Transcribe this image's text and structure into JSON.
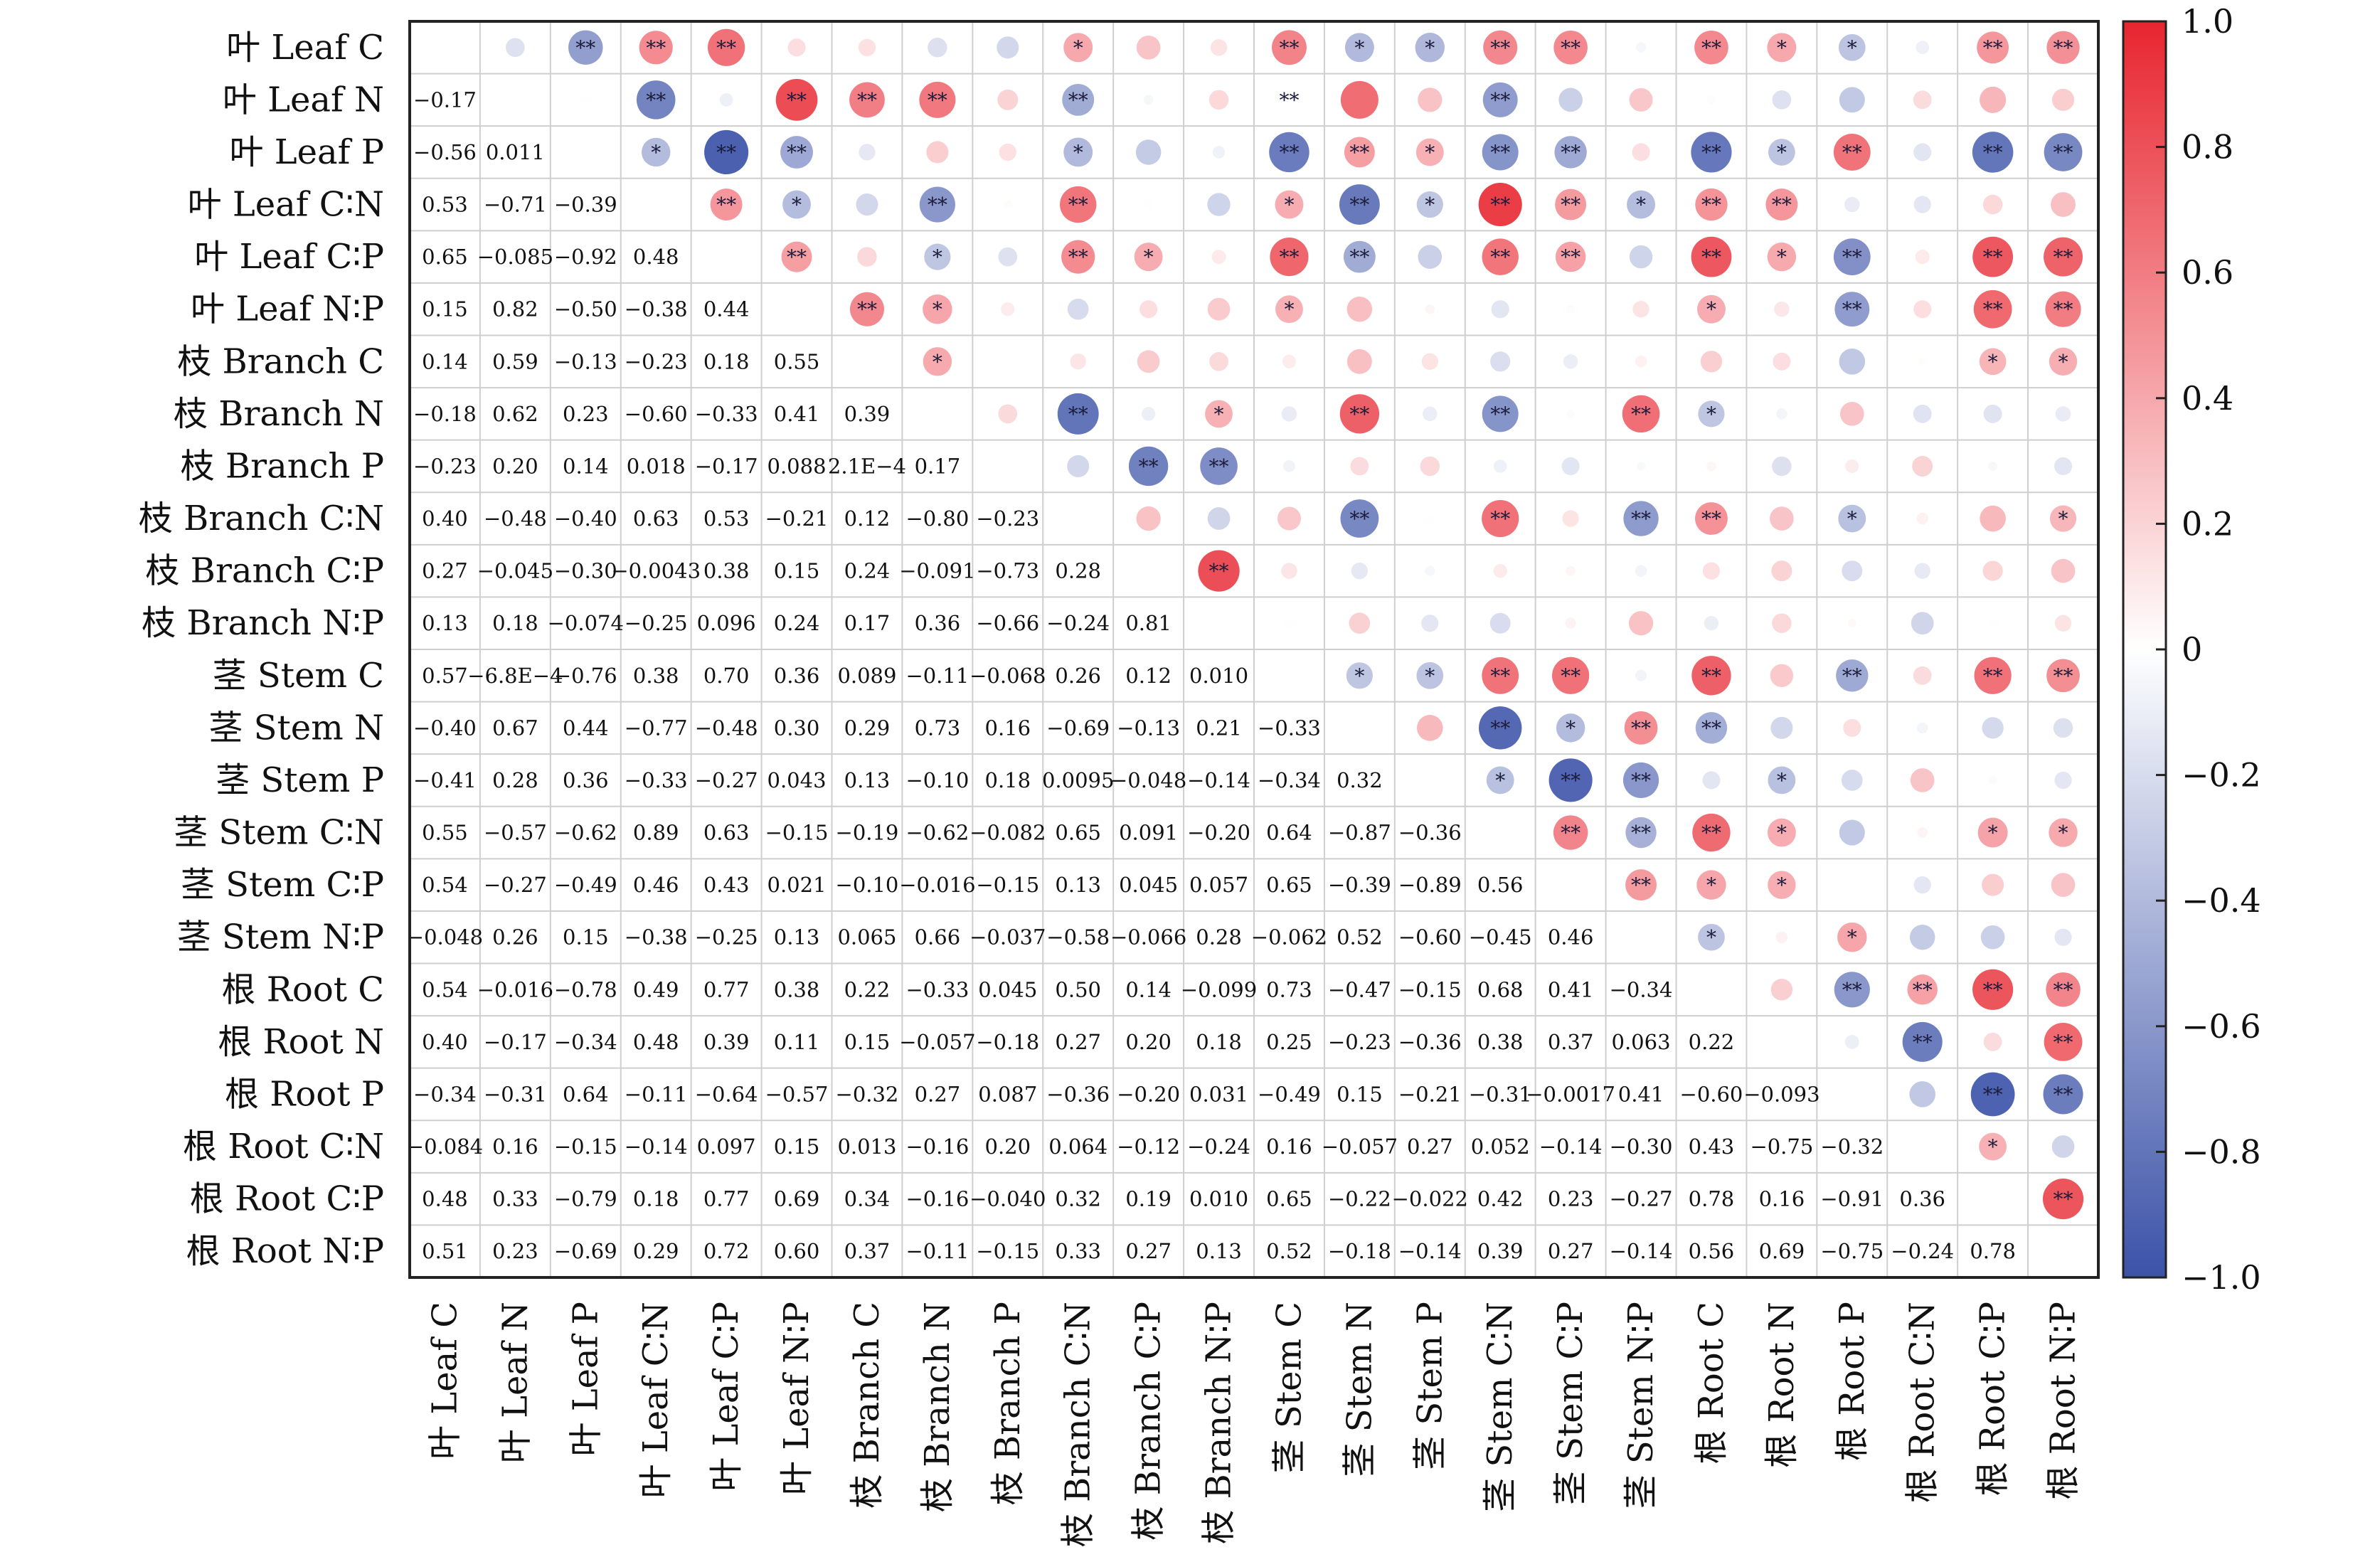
{
  "chart_data": {
    "type": "heatmap",
    "title": "",
    "labels": [
      "叶 Leaf C",
      "叶 Leaf N",
      "叶 Leaf P",
      "叶 Leaf C∶N",
      "叶 Leaf C∶P",
      "叶 Leaf N∶P",
      "枝 Branch C",
      "枝 Branch N",
      "枝 Branch P",
      "枝 Branch C∶N",
      "枝 Branch C∶P",
      "枝 Branch N∶P",
      "茎 Stem C",
      "茎 Stem N",
      "茎 Stem P",
      "茎 Stem C∶N",
      "茎 Stem C∶P",
      "茎 Stem N∶P",
      "根 Root C",
      "根 Root N",
      "根 Root P",
      "根 Root C∶N",
      "根 Root C∶P",
      "根 Root N∶P"
    ],
    "lower_labels": [
      [],
      [
        "−0.17"
      ],
      [
        "−0.56",
        "0.011"
      ],
      [
        "0.53",
        "−0.71",
        "−0.39"
      ],
      [
        "0.65",
        "−0.085",
        "−0.92",
        "0.48"
      ],
      [
        "0.15",
        "0.82",
        "−0.50",
        "−0.38",
        "0.44"
      ],
      [
        "0.14",
        "0.59",
        "−0.13",
        "−0.23",
        "0.18",
        "0.55"
      ],
      [
        "−0.18",
        "0.62",
        "0.23",
        "−0.60",
        "−0.33",
        "0.41",
        "0.39"
      ],
      [
        "−0.23",
        "0.20",
        "0.14",
        "0.018",
        "−0.17",
        "0.088",
        "2.1E−4",
        "0.17"
      ],
      [
        "0.40",
        "−0.48",
        "−0.40",
        "0.63",
        "0.53",
        "−0.21",
        "0.12",
        "−0.80",
        "−0.23"
      ],
      [
        "0.27",
        "−0.045",
        "−0.30",
        "−0.0043",
        "0.38",
        "0.15",
        "0.24",
        "−0.091",
        "−0.73",
        "0.28"
      ],
      [
        "0.13",
        "0.18",
        "−0.074",
        "−0.25",
        "0.096",
        "0.24",
        "0.17",
        "0.36",
        "−0.66",
        "−0.24",
        "0.81"
      ],
      [
        "0.57",
        "−6.8E−4",
        "−0.76",
        "0.38",
        "0.70",
        "0.36",
        "0.089",
        "−0.11",
        "−0.068",
        "0.26",
        "0.12",
        "0.010"
      ],
      [
        "−0.40",
        "0.67",
        "0.44",
        "−0.77",
        "−0.48",
        "0.30",
        "0.29",
        "0.73",
        "0.16",
        "−0.69",
        "−0.13",
        "0.21",
        "−0.33"
      ],
      [
        "−0.41",
        "0.28",
        "0.36",
        "−0.33",
        "−0.27",
        "0.043",
        "0.13",
        "−0.10",
        "0.18",
        "0.0095",
        "−0.048",
        "−0.14",
        "−0.34",
        "0.32"
      ],
      [
        "0.55",
        "−0.57",
        "−0.62",
        "0.89",
        "0.63",
        "−0.15",
        "−0.19",
        "−0.62",
        "−0.082",
        "0.65",
        "0.091",
        "−0.20",
        "0.64",
        "−0.87",
        "−0.36"
      ],
      [
        "0.54",
        "−0.27",
        "−0.49",
        "0.46",
        "0.43",
        "0.021",
        "−0.10",
        "−0.016",
        "−0.15",
        "0.13",
        "0.045",
        "0.057",
        "0.65",
        "−0.39",
        "−0.89",
        "0.56"
      ],
      [
        "−0.048",
        "0.26",
        "0.15",
        "−0.38",
        "−0.25",
        "0.13",
        "0.065",
        "0.66",
        "−0.037",
        "−0.58",
        "−0.066",
        "0.28",
        "−0.062",
        "0.52",
        "−0.60",
        "−0.45",
        "0.46"
      ],
      [
        "0.54",
        "−0.016",
        "−0.78",
        "0.49",
        "0.77",
        "0.38",
        "0.22",
        "−0.33",
        "0.045",
        "0.50",
        "0.14",
        "−0.099",
        "0.73",
        "−0.47",
        "−0.15",
        "0.68",
        "0.41",
        "−0.34"
      ],
      [
        "0.40",
        "−0.17",
        "−0.34",
        "0.48",
        "0.39",
        "0.11",
        "0.15",
        "−0.057",
        "−0.18",
        "0.27",
        "0.20",
        "0.18",
        "0.25",
        "−0.23",
        "−0.36",
        "0.38",
        "0.37",
        "0.063",
        "0.22"
      ],
      [
        "−0.34",
        "−0.31",
        "0.64",
        "−0.11",
        "−0.64",
        "−0.57",
        "−0.32",
        "0.27",
        "0.087",
        "−0.36",
        "−0.20",
        "0.031",
        "−0.49",
        "0.15",
        "−0.21",
        "−0.31",
        "−0.0017",
        "0.41",
        "−0.60",
        "−0.093"
      ],
      [
        "−0.084",
        "0.16",
        "−0.15",
        "−0.14",
        "0.097",
        "0.15",
        "0.013",
        "−0.16",
        "0.20",
        "0.064",
        "−0.12",
        "−0.24",
        "0.16",
        "−0.057",
        "0.27",
        "0.052",
        "−0.14",
        "−0.30",
        "0.43",
        "−0.75",
        "−0.32"
      ],
      [
        "0.48",
        "0.33",
        "−0.79",
        "0.18",
        "0.77",
        "0.69",
        "0.34",
        "−0.16",
        "−0.040",
        "0.32",
        "0.19",
        "0.010",
        "0.65",
        "−0.22",
        "−0.022",
        "0.42",
        "0.23",
        "−0.27",
        "0.78",
        "0.16",
        "−0.91",
        "0.36"
      ],
      [
        "0.51",
        "0.23",
        "−0.69",
        "0.29",
        "0.72",
        "0.60",
        "0.37",
        "−0.11",
        "−0.15",
        "0.33",
        "0.27",
        "0.13",
        "0.52",
        "−0.18",
        "−0.14",
        "0.39",
        "0.27",
        "−0.14",
        "0.56",
        "0.69",
        "−0.75",
        "−0.24",
        "0.78"
      ]
    ],
    "upper_marks": [
      [
        "",
        "",
        "**",
        "**",
        "**",
        "",
        "",
        "",
        "",
        "*",
        "",
        "",
        "**",
        "*",
        "*",
        "**",
        "**",
        "",
        "**",
        "*",
        "*",
        "",
        "**",
        "**"
      ],
      [
        "",
        "",
        "",
        "**",
        "",
        "**",
        "**",
        "**",
        "",
        "**",
        "",
        "",
        "**",
        "",
        "",
        "**",
        "",
        "",
        "",
        "",
        "",
        "",
        "",
        ""
      ],
      [
        "",
        "",
        "",
        "*",
        "**",
        "**",
        "",
        "",
        "",
        "*",
        "",
        "",
        "**",
        "**",
        "*",
        "**",
        "**",
        "",
        "**",
        "*",
        "**",
        "",
        "**",
        "**"
      ],
      [
        "",
        "",
        "",
        "",
        "**",
        "*",
        "",
        "**",
        "",
        "**",
        "",
        "",
        "*",
        "**",
        "*",
        "**",
        "**",
        "*",
        "**",
        "**",
        "",
        "",
        "",
        ""
      ],
      [
        "",
        "",
        "",
        "",
        "",
        "**",
        "",
        "*",
        "",
        "**",
        "*",
        "",
        "**",
        "**",
        "",
        "**",
        "**",
        "",
        "**",
        "*",
        "**",
        "",
        "**",
        "**"
      ],
      [
        "",
        "",
        "",
        "",
        "",
        "",
        "**",
        "*",
        "",
        "",
        "",
        "",
        "*",
        "",
        "",
        "",
        "",
        "",
        "*",
        "",
        "**",
        "",
        "**",
        "**"
      ],
      [
        "",
        "",
        "",
        "",
        "",
        "",
        "",
        "*",
        "",
        "",
        "",
        "",
        "",
        "",
        "",
        "",
        "",
        "",
        "",
        "",
        "",
        "",
        "*",
        "*"
      ],
      [
        "",
        "",
        "",
        "",
        "",
        "",
        "",
        "",
        "",
        "**",
        "",
        "*",
        "",
        "**",
        "",
        "**",
        "",
        "**",
        "*",
        "",
        "",
        "",
        "",
        ""
      ],
      [
        "",
        "",
        "",
        "",
        "",
        "",
        "",
        "",
        "",
        "",
        "**",
        "**",
        "",
        "",
        "",
        "",
        "",
        "",
        "",
        "",
        "",
        "",
        "",
        ""
      ],
      [
        "",
        "",
        "",
        "",
        "",
        "",
        "",
        "",
        "",
        "",
        "",
        "",
        "",
        "**",
        "",
        "**",
        "",
        "**",
        "**",
        "",
        "*",
        "",
        "",
        "*"
      ],
      [
        "",
        "",
        "",
        "",
        "",
        "",
        "",
        "",
        "",
        "",
        "",
        "**",
        "",
        "",
        "",
        "",
        "",
        "",
        "",
        "",
        "",
        "",
        "",
        ""
      ],
      [
        "",
        "",
        "",
        "",
        "",
        "",
        "",
        "",
        "",
        "",
        "",
        "",
        "",
        "",
        "",
        "",
        "",
        "",
        "",
        "",
        "",
        "",
        "",
        ""
      ],
      [
        "",
        "",
        "",
        "",
        "",
        "",
        "",
        "",
        "",
        "",
        "",
        "",
        "",
        "*",
        "*",
        "**",
        "**",
        "",
        "**",
        "",
        "**",
        "",
        "**",
        "**"
      ],
      [
        "",
        "",
        "",
        "",
        "",
        "",
        "",
        "",
        "",
        "",
        "",
        "",
        "",
        "",
        "",
        "**",
        "*",
        "**",
        "**",
        "",
        "",
        "",
        "",
        ""
      ],
      [
        "",
        "",
        "",
        "",
        "",
        "",
        "",
        "",
        "",
        "",
        "",
        "",
        "",
        "",
        "",
        "*",
        "**",
        "**",
        "",
        "*",
        "",
        "",
        "",
        ""
      ],
      [
        "",
        "",
        "",
        "",
        "",
        "",
        "",
        "",
        "",
        "",
        "",
        "",
        "",
        "",
        "",
        "",
        "**",
        "**",
        "**",
        "*",
        "",
        "",
        "*",
        "*"
      ],
      [
        "",
        "",
        "",
        "",
        "",
        "",
        "",
        "",
        "",
        "",
        "",
        "",
        "",
        "",
        "",
        "",
        "",
        "**",
        "*",
        "*",
        "",
        "",
        "",
        ""
      ],
      [
        "",
        "",
        "",
        "",
        "",
        "",
        "",
        "",
        "",
        "",
        "",
        "",
        "",
        "",
        "",
        "",
        "",
        "",
        "*",
        "",
        "*",
        "",
        "",
        ""
      ],
      [
        "",
        "",
        "",
        "",
        "",
        "",
        "",
        "",
        "",
        "",
        "",
        "",
        "",
        "",
        "",
        "",
        "",
        "",
        "",
        "",
        "**",
        "**",
        "**",
        "**"
      ],
      [
        "",
        "",
        "",
        "",
        "",
        "",
        "",
        "",
        "",
        "",
        "",
        "",
        "",
        "",
        "",
        "",
        "",
        "",
        "",
        "",
        "",
        "**",
        "",
        "**"
      ],
      [
        "",
        "",
        "",
        "",
        "",
        "",
        "",
        "",
        "",
        "",
        "",
        "",
        "",
        "",
        "",
        "",
        "",
        "",
        "",
        "",
        "",
        "",
        "**",
        "**"
      ],
      [
        "",
        "",
        "",
        "",
        "",
        "",
        "",
        "",
        "",
        "",
        "",
        "",
        "",
        "",
        "",
        "",
        "",
        "",
        "",
        "",
        "",
        "",
        "*",
        ""
      ],
      [
        "",
        "",
        "",
        "",
        "",
        "",
        "",
        "",
        "",
        "",
        "",
        "",
        "",
        "",
        "",
        "",
        "",
        "",
        "",
        "",
        "",
        "",
        "",
        "**"
      ],
      [
        "",
        "",
        "",
        "",
        "",
        "",
        "",
        "",
        "",
        "",
        "",
        "",
        "",
        "",
        "",
        "",
        "",
        "",
        "",
        "",
        "",
        "",
        "",
        ""
      ]
    ],
    "colorbar": {
      "range": [
        -1.0,
        1.0
      ],
      "ticks": [
        "1.0",
        "0.8",
        "0.6",
        "0.4",
        "0.2",
        "0",
        "−0.2",
        "−0.4",
        "−0.6",
        "−0.8",
        "−1.0"
      ],
      "colors": {
        "negative": "#3b52a8",
        "zero": "#ffffff",
        "positive": "#e8252f"
      }
    },
    "grid": true,
    "legend": "colorbar-right"
  }
}
